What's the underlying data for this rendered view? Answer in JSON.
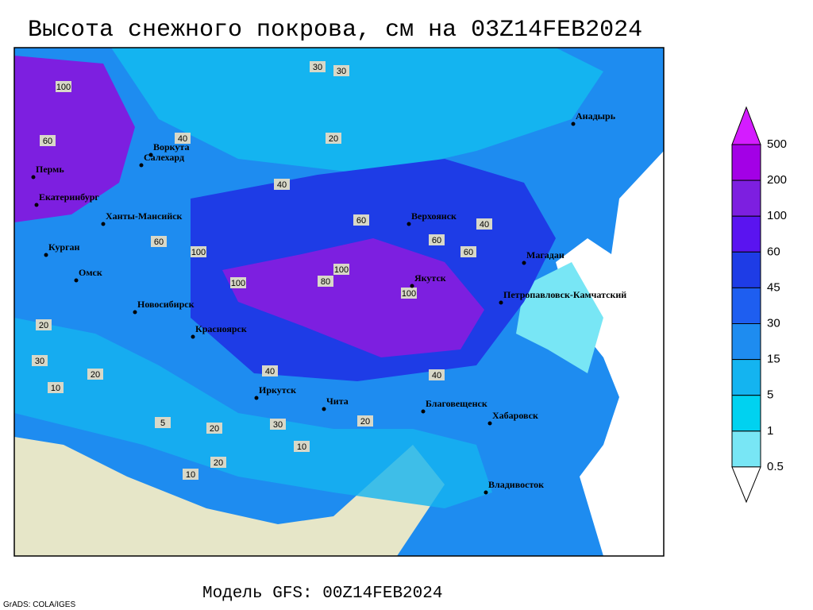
{
  "header": {
    "title": "Высота снежного покрова, см на 03Z14FEB2024",
    "model": "Модель GFS: 00Z14FEB2024",
    "credit": "GrADS: COLA/IGES"
  },
  "legend": {
    "levels": [
      500,
      200,
      100,
      60,
      45,
      30,
      15,
      5,
      1,
      0.5
    ],
    "colors": [
      "#d41cff",
      "#a300e6",
      "#7d1fe0",
      "#5a14f0",
      "#1e3ce6",
      "#1e5ef0",
      "#1e8cf0",
      "#14b4f0",
      "#00d2f0",
      "#78e6f5",
      "#ffffff"
    ]
  },
  "cities": [
    "Воркута",
    "Салехард",
    "Пермь",
    "Екатеринбург",
    "Ханты-Мансийск",
    "Курган",
    "Омск",
    "Новосибирск",
    "Красноярск",
    "Иркутск",
    "Чита",
    "Благовещенск",
    "Хабаровск",
    "Владивосток",
    "Верхоянск",
    "Якутск",
    "Магадан",
    "Петропавловск-Камчатский",
    "Анадырь"
  ],
  "contour_labels": [
    100,
    60,
    40,
    30,
    30,
    20,
    40,
    60,
    60,
    100,
    100,
    80,
    100,
    60,
    100,
    60,
    40,
    40,
    20,
    30,
    20,
    10,
    20,
    30,
    20,
    10,
    5,
    10,
    20,
    40
  ]
}
